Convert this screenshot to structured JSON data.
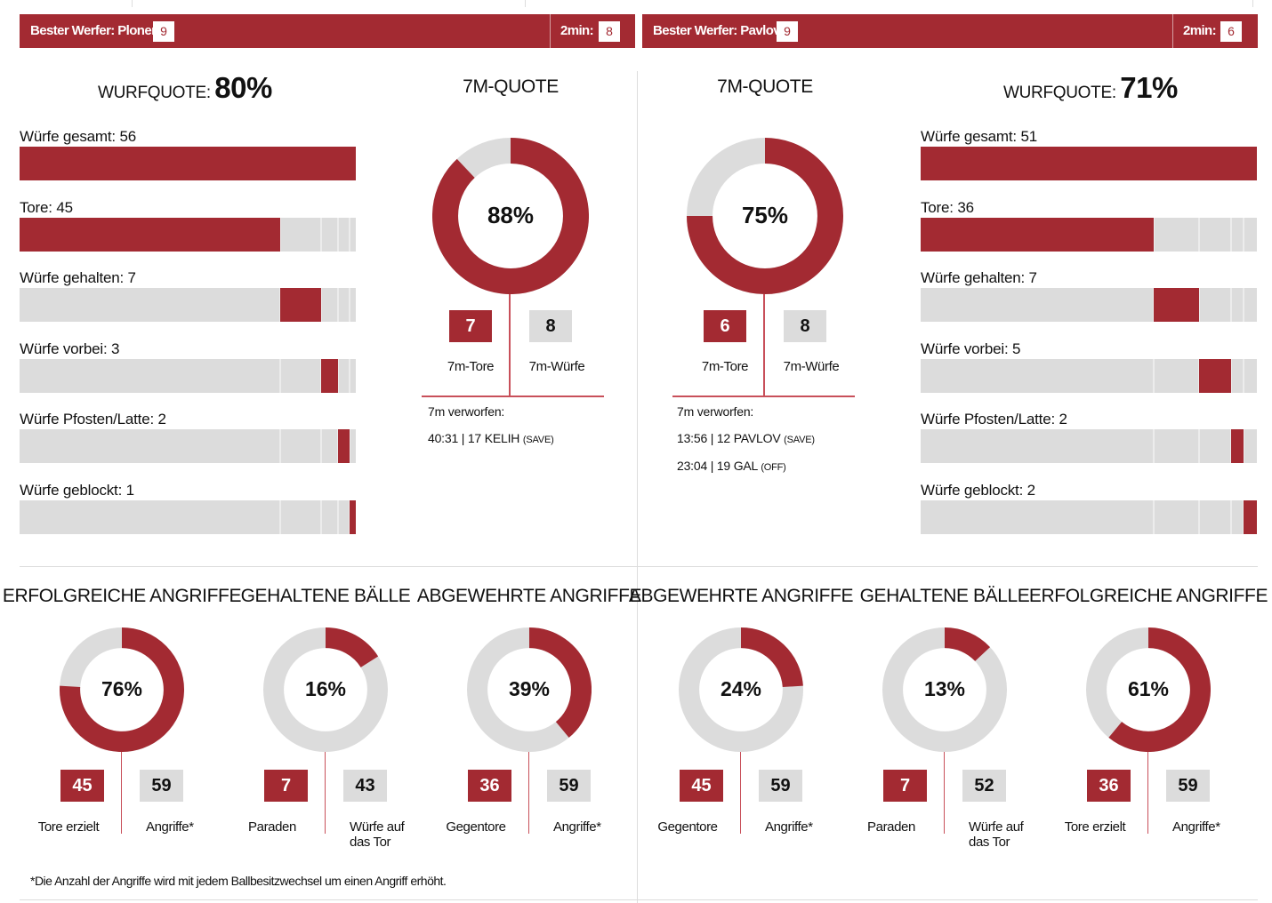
{
  "header": {
    "left": {
      "best_label": "Bester Werfer: Ploner",
      "best_value": "9",
      "twomin_label": "2min:",
      "twomin_value": "8"
    },
    "right": {
      "best_label": "Bester Werfer: Pavlov",
      "best_value": "9",
      "twomin_label": "2min:",
      "twomin_value": "6"
    }
  },
  "colors": {
    "accent": "#a32a32",
    "track": "#dcdcdc"
  },
  "left": {
    "wurfquote_label": "WURFQUOTE:",
    "wurfquote_value": "80%",
    "bars": [
      {
        "label": "Würfe gesamt: 56"
      },
      {
        "label": "Tore: 45"
      },
      {
        "label": "Würfe gehalten: 7"
      },
      {
        "label": "Würfe vorbei: 3"
      },
      {
        "label": "Würfe Pfosten/Latte: 2"
      },
      {
        "label": "Würfe geblockt: 1"
      }
    ],
    "seven_m": {
      "title": "7M-QUOTE",
      "pct": "88%",
      "tore": "7",
      "tore_label": "7m-Tore",
      "wuerfe": "8",
      "wuerfe_label": "7m-Würfe",
      "missed_title": "7m verworfen:",
      "missed": [
        {
          "text": "40:31 | 17 KELIH",
          "tag": "(SAVE)"
        }
      ]
    }
  },
  "right": {
    "wurfquote_label": "WURFQUOTE:",
    "wurfquote_value": "71%",
    "bars": [
      {
        "label": "Würfe gesamt: 51"
      },
      {
        "label": "Tore: 36"
      },
      {
        "label": "Würfe gehalten: 7"
      },
      {
        "label": "Würfe vorbei: 5"
      },
      {
        "label": "Würfe Pfosten/Latte: 2"
      },
      {
        "label": "Würfe geblockt: 2"
      }
    ],
    "seven_m": {
      "title": "7M-QUOTE",
      "pct": "75%",
      "tore": "6",
      "tore_label": "7m-Tore",
      "wuerfe": "8",
      "wuerfe_label": "7m-Würfe",
      "missed_title": "7m verworfen:",
      "missed": [
        {
          "text": "13:56 | 12 PAVLOV",
          "tag": "(SAVE)"
        },
        {
          "text": "23:04 | 19 GAL",
          "tag": "(OFF)"
        }
      ]
    }
  },
  "bottom": [
    {
      "title": "ERFOLGREICHE ANGRIFFE",
      "pct": "76%",
      "a": "45",
      "a_label": "Tore erzielt",
      "b": "59",
      "b_label": "Angriffe*"
    },
    {
      "title": "GEHALTENE BÄLLE",
      "pct": "16%",
      "a": "7",
      "a_label": "Paraden",
      "b": "43",
      "b_label": "Würfe auf das Tor"
    },
    {
      "title": "ABGEWEHRTE ANGRIFFE",
      "pct": "39%",
      "a": "36",
      "a_label": "Gegentore",
      "b": "59",
      "b_label": "Angriffe*"
    },
    {
      "title": "ABGEWEHRTE ANGRIFFE",
      "pct": "24%",
      "a": "45",
      "a_label": "Gegentore",
      "b": "59",
      "b_label": "Angriffe*"
    },
    {
      "title": "GEHALTENE BÄLLE",
      "pct": "13%",
      "a": "7",
      "a_label": "Paraden",
      "b": "52",
      "b_label": "Würfe auf das Tor"
    },
    {
      "title": "ERFOLGREICHE ANGRIFFE",
      "pct": "61%",
      "a": "36",
      "a_label": "Tore erzielt",
      "b": "59",
      "b_label": "Angriffe*"
    }
  ],
  "footnote": "*Die Anzahl der Angriffe wird mit jedem Ballbesitzwechsel um einen Angriff erhöht.",
  "chart_data": [
    {
      "type": "bar",
      "orientation": "horizontal",
      "categories": [
        "Würfe gesamt",
        "Tore",
        "Würfe gehalten",
        "Würfe vorbei",
        "Würfe Pfosten/Latte",
        "Würfe geblockt"
      ],
      "values": [
        56,
        45,
        7,
        3,
        2,
        1
      ],
      "stacked_offsets": [
        0,
        0,
        45,
        52,
        55,
        57
      ],
      "xlim": [
        0,
        58
      ]
    },
    {
      "type": "pie",
      "variant": "donut",
      "values": [
        88,
        12
      ]
    },
    {
      "type": "pie",
      "variant": "donut",
      "values": [
        75,
        25
      ]
    },
    {
      "type": "bar",
      "orientation": "horizontal",
      "categories": [
        "Würfe gesamt",
        "Tore",
        "Würfe gehalten",
        "Würfe vorbei",
        "Würfe Pfosten/Latte",
        "Würfe geblockt"
      ],
      "values": [
        51,
        36,
        7,
        5,
        2,
        2
      ],
      "stacked_offsets": [
        0,
        0,
        36,
        43,
        48,
        50
      ],
      "xlim": [
        0,
        52
      ]
    },
    {
      "type": "pie",
      "variant": "donut",
      "values": [
        76,
        24
      ]
    },
    {
      "type": "pie",
      "variant": "donut",
      "values": [
        16,
        84
      ]
    },
    {
      "type": "pie",
      "variant": "donut",
      "values": [
        39,
        61
      ]
    },
    {
      "type": "pie",
      "variant": "donut",
      "values": [
        24,
        76
      ]
    },
    {
      "type": "pie",
      "variant": "donut",
      "values": [
        13,
        87
      ]
    },
    {
      "type": "pie",
      "variant": "donut",
      "values": [
        61,
        39
      ]
    }
  ]
}
